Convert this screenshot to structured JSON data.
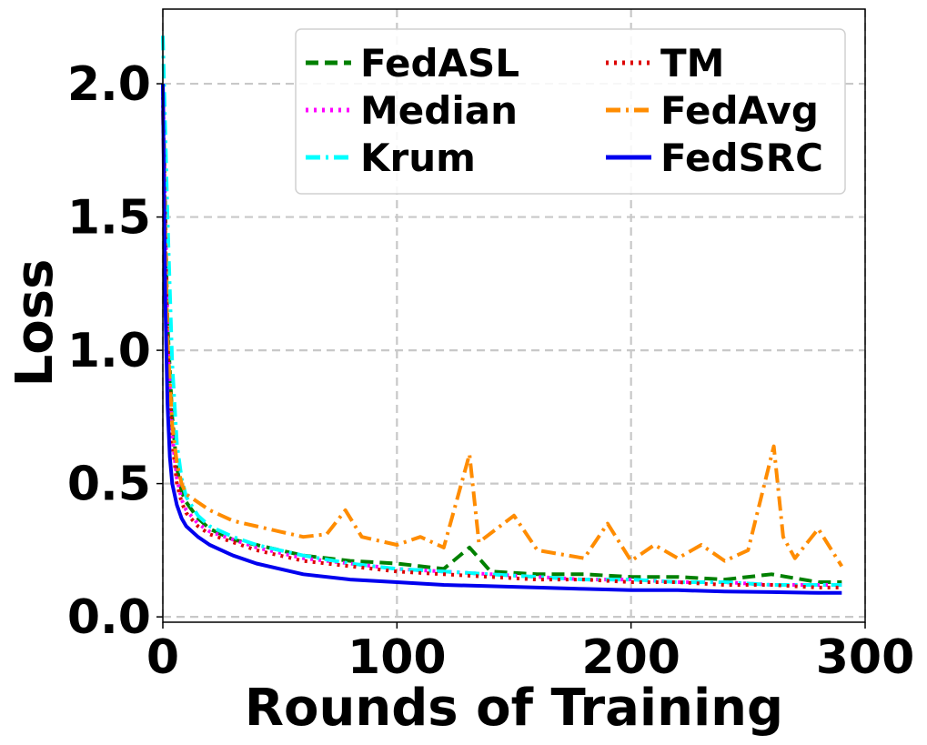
{
  "chart_data": {
    "type": "line",
    "title": "",
    "xlabel": "Rounds of Training",
    "ylabel": "Loss",
    "xlim": [
      0,
      300
    ],
    "ylim": [
      -0.02,
      2.28
    ],
    "xticks": [
      0,
      100,
      200,
      300
    ],
    "xtick_labels": [
      "0",
      "100",
      "200",
      "300"
    ],
    "yticks": [
      0.0,
      0.5,
      1.0,
      1.5,
      2.0
    ],
    "ytick_labels": [
      "0.0",
      "0.5",
      "1.0",
      "1.5",
      "2.0"
    ],
    "grid": true,
    "legend_position": "top-right",
    "legend_columns": 2,
    "series": [
      {
        "name": "FedASL",
        "color": "#008000",
        "dash": "dashed",
        "x": [
          0,
          2,
          4,
          6,
          8,
          10,
          15,
          20,
          30,
          40,
          50,
          60,
          80,
          100,
          120,
          131,
          140,
          160,
          180,
          200,
          220,
          240,
          260,
          280,
          290
        ],
        "y": [
          2.0,
          1.1,
          0.75,
          0.56,
          0.47,
          0.43,
          0.37,
          0.33,
          0.29,
          0.27,
          0.25,
          0.23,
          0.21,
          0.2,
          0.18,
          0.26,
          0.17,
          0.16,
          0.16,
          0.15,
          0.15,
          0.14,
          0.16,
          0.13,
          0.13
        ]
      },
      {
        "name": "Median",
        "color": "#ff00ff",
        "dash": "dotted",
        "x": [
          0,
          2,
          4,
          6,
          8,
          10,
          15,
          20,
          30,
          40,
          50,
          60,
          80,
          100,
          120,
          140,
          160,
          180,
          200,
          220,
          240,
          260,
          280,
          290
        ],
        "y": [
          2.0,
          1.05,
          0.68,
          0.52,
          0.44,
          0.4,
          0.35,
          0.32,
          0.29,
          0.26,
          0.24,
          0.22,
          0.2,
          0.18,
          0.17,
          0.16,
          0.15,
          0.14,
          0.14,
          0.13,
          0.13,
          0.12,
          0.12,
          0.12
        ]
      },
      {
        "name": "Krum",
        "color": "#00ffff",
        "dash": "dashdot",
        "x": [
          0,
          2,
          4,
          6,
          8,
          10,
          15,
          20,
          30,
          40,
          50,
          60,
          80,
          100,
          120,
          140,
          160,
          180,
          200,
          220,
          240,
          260,
          280,
          290
        ],
        "y": [
          2.18,
          1.5,
          0.95,
          0.65,
          0.52,
          0.45,
          0.38,
          0.34,
          0.3,
          0.27,
          0.25,
          0.23,
          0.2,
          0.18,
          0.17,
          0.16,
          0.15,
          0.14,
          0.14,
          0.13,
          0.13,
          0.12,
          0.12,
          0.12
        ]
      },
      {
        "name": "TM",
        "color": "#dd0000",
        "dash": "dotted",
        "x": [
          0,
          2,
          4,
          6,
          8,
          10,
          15,
          20,
          30,
          40,
          50,
          60,
          80,
          100,
          120,
          140,
          160,
          180,
          200,
          220,
          240,
          260,
          280,
          290
        ],
        "y": [
          1.95,
          1.02,
          0.66,
          0.5,
          0.43,
          0.39,
          0.34,
          0.31,
          0.28,
          0.25,
          0.23,
          0.21,
          0.19,
          0.17,
          0.16,
          0.15,
          0.14,
          0.14,
          0.13,
          0.13,
          0.12,
          0.12,
          0.11,
          0.11
        ]
      },
      {
        "name": "FedAvg",
        "color": "#ff8c00",
        "dash": "dashdot",
        "x": [
          0,
          2,
          4,
          6,
          8,
          10,
          15,
          20,
          30,
          40,
          50,
          60,
          70,
          78,
          85,
          100,
          110,
          120,
          131,
          135,
          150,
          160,
          180,
          190,
          200,
          210,
          220,
          230,
          240,
          250,
          261,
          265,
          270,
          280,
          290
        ],
        "y": [
          1.9,
          1.05,
          0.72,
          0.58,
          0.5,
          0.46,
          0.43,
          0.4,
          0.36,
          0.34,
          0.32,
          0.3,
          0.31,
          0.4,
          0.3,
          0.27,
          0.3,
          0.26,
          0.61,
          0.28,
          0.38,
          0.25,
          0.22,
          0.35,
          0.21,
          0.27,
          0.22,
          0.27,
          0.21,
          0.25,
          0.64,
          0.3,
          0.22,
          0.33,
          0.19
        ]
      },
      {
        "name": "FedSRC",
        "color": "#0000ee",
        "dash": "solid",
        "x": [
          0,
          1,
          2,
          3,
          4,
          6,
          8,
          10,
          15,
          20,
          30,
          40,
          50,
          60,
          80,
          100,
          120,
          140,
          160,
          180,
          200,
          220,
          240,
          260,
          280,
          290
        ],
        "y": [
          2.0,
          1.2,
          0.8,
          0.6,
          0.5,
          0.42,
          0.37,
          0.34,
          0.3,
          0.27,
          0.23,
          0.2,
          0.18,
          0.16,
          0.14,
          0.13,
          0.12,
          0.115,
          0.11,
          0.105,
          0.1,
          0.1,
          0.095,
          0.093,
          0.09,
          0.09
        ]
      }
    ]
  }
}
